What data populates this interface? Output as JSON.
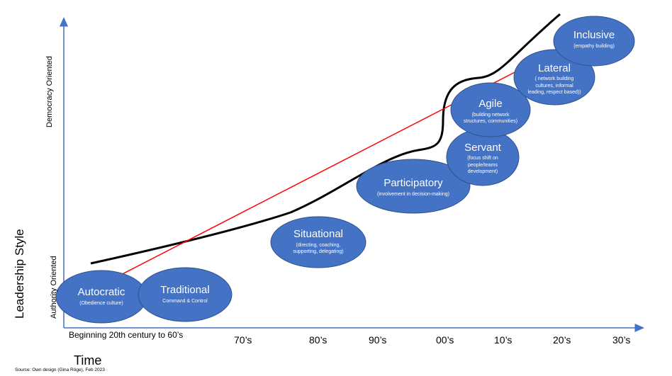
{
  "axes": {
    "y_title": "Leadership Style",
    "y_top": "Democracy Oriented",
    "y_bottom": "Authority Oriented",
    "x_title": "Time",
    "x_ticks": [
      "Beginning 20th century to 60’s",
      "70’s",
      "80’s",
      "90’s",
      "00’s",
      "10’s",
      "20’s",
      "30’s"
    ]
  },
  "styles": [
    {
      "title": "Autocratic",
      "sub": "(Obedience culture)"
    },
    {
      "title": "Traditional",
      "sub": "Command & Control"
    },
    {
      "title": "Situational",
      "sub": "(directing, coaching, supporting, delegating)"
    },
    {
      "title": "Participatory",
      "sub": "(involvement in decision-making)"
    },
    {
      "title": "Servant",
      "sub": "(focus  shift on people/teams development)"
    },
    {
      "title": "Agile",
      "sub": "(building network structures, communities)"
    },
    {
      "title": "Lateral",
      "sub": "( network building cultures, informal leading, respect based))"
    },
    {
      "title": "Inclusive",
      "sub": "(empathy building)"
    }
  ],
  "source": "Source: Own design (Gina Röge), Feb 2023",
  "colors": {
    "axis": "#4472C4",
    "ellipse_fill": "#4472C4",
    "ellipse_stroke": "#2F528F",
    "trend": "#FF0000",
    "curve": "#000000"
  }
}
